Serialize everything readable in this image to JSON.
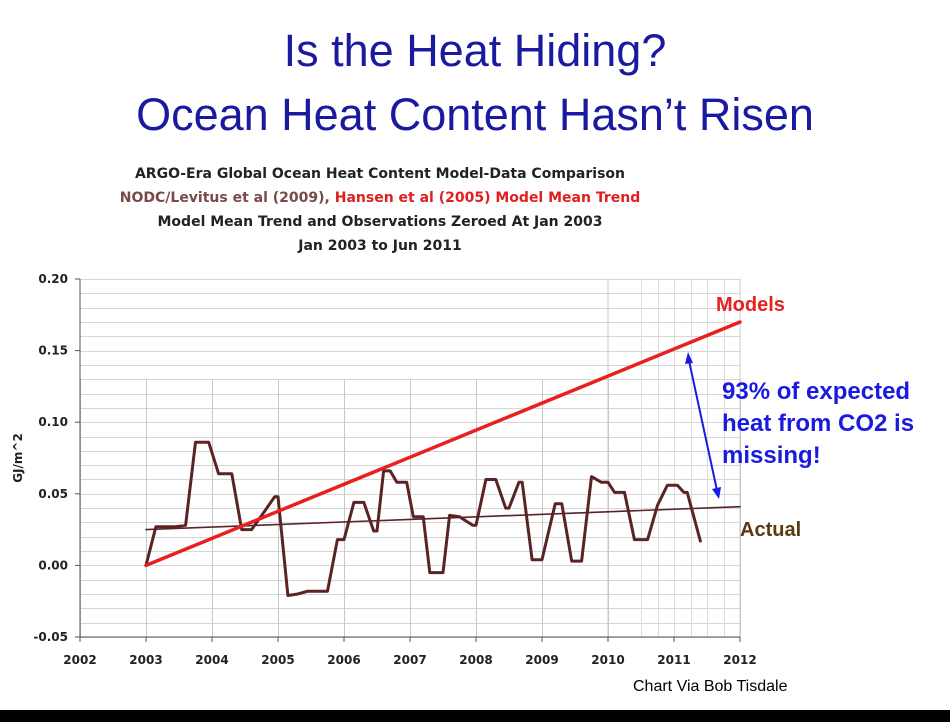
{
  "slide": {
    "title_line1": "Is the Heat Hiding?",
    "title_line2": "Ocean Heat Content Hasn’t Risen",
    "credit": "Chart Via Bob Tisdale"
  },
  "header": {
    "line1": "ARGO-Era Global Ocean Heat Content Model-Data Comparison",
    "line2_part1": "NODC/Levitus et al (2009), ",
    "line2_part2": "Hansen et al (2005) Model Mean Trend",
    "line3": "Model Mean Trend and Observations Zeroed At Jan 2003",
    "line4": "Jan 2003 to Jun 2011"
  },
  "annotations": {
    "models": "Models",
    "actual": "Actual",
    "missing_line1": "93% of expected",
    "missing_line2": "heat from CO2 is",
    "missing_line3": "missing!"
  },
  "colors": {
    "title": "#1a1aa0",
    "models": "#e82020",
    "actual_series": "#5a2424",
    "actual_label": "#5a3a10",
    "annotation": "#1a1ae0"
  },
  "chart_data": {
    "type": "line",
    "ylabel": "GJ/m^2",
    "xlim": [
      2002,
      2012
    ],
    "ylim": [
      -0.05,
      0.2
    ],
    "x_ticks": [
      2002,
      2003,
      2004,
      2005,
      2006,
      2007,
      2008,
      2009,
      2010,
      2011,
      2012
    ],
    "y_ticks": [
      "-0.05",
      "0.00",
      "0.05",
      "0.10",
      "0.15",
      "0.20"
    ],
    "grid": true,
    "series": [
      {
        "name": "Models",
        "kind": "trend",
        "x": [
          2003.0,
          2012.0
        ],
        "y": [
          0.0,
          0.17
        ]
      },
      {
        "name": "Actual",
        "kind": "observations",
        "x": [
          2003.0,
          2003.15,
          2003.25,
          2003.45,
          2003.6,
          2003.75,
          2003.95,
          2004.1,
          2004.3,
          2004.45,
          2004.6,
          2004.8,
          2004.95,
          2005.0,
          2005.15,
          2005.3,
          2005.45,
          2005.6,
          2005.7,
          2005.75,
          2005.9,
          2006.0,
          2006.15,
          2006.3,
          2006.45,
          2006.5,
          2006.6,
          2006.7,
          2006.8,
          2006.95,
          2007.05,
          2007.2,
          2007.3,
          2007.5,
          2007.6,
          2007.75,
          2007.95,
          2008.0,
          2008.15,
          2008.3,
          2008.45,
          2008.5,
          2008.65,
          2008.7,
          2008.85,
          2009.0,
          2009.2,
          2009.3,
          2009.45,
          2009.6,
          2009.75,
          2009.9,
          2010.0,
          2010.1,
          2010.25,
          2010.4,
          2010.6,
          2010.75,
          2010.9,
          2011.05,
          2011.15,
          2011.2,
          2011.4
        ],
        "y": [
          0.0,
          0.027,
          0.027,
          0.027,
          0.028,
          0.086,
          0.086,
          0.064,
          0.064,
          0.025,
          0.025,
          0.038,
          0.048,
          0.048,
          -0.021,
          -0.02,
          -0.018,
          -0.018,
          -0.018,
          -0.018,
          0.018,
          0.018,
          0.044,
          0.044,
          0.024,
          0.024,
          0.066,
          0.066,
          0.058,
          0.058,
          0.034,
          0.034,
          -0.005,
          -0.005,
          0.035,
          0.034,
          0.028,
          0.028,
          0.06,
          0.06,
          0.04,
          0.04,
          0.058,
          0.058,
          0.004,
          0.004,
          0.043,
          0.043,
          0.003,
          0.003,
          0.062,
          0.058,
          0.058,
          0.051,
          0.051,
          0.018,
          0.018,
          0.042,
          0.056,
          0.056,
          0.051,
          0.051,
          0.017
        ]
      },
      {
        "name": "Actual trend",
        "kind": "trend",
        "x": [
          2003.0,
          2012.0
        ],
        "y": [
          0.025,
          0.041
        ]
      }
    ]
  }
}
